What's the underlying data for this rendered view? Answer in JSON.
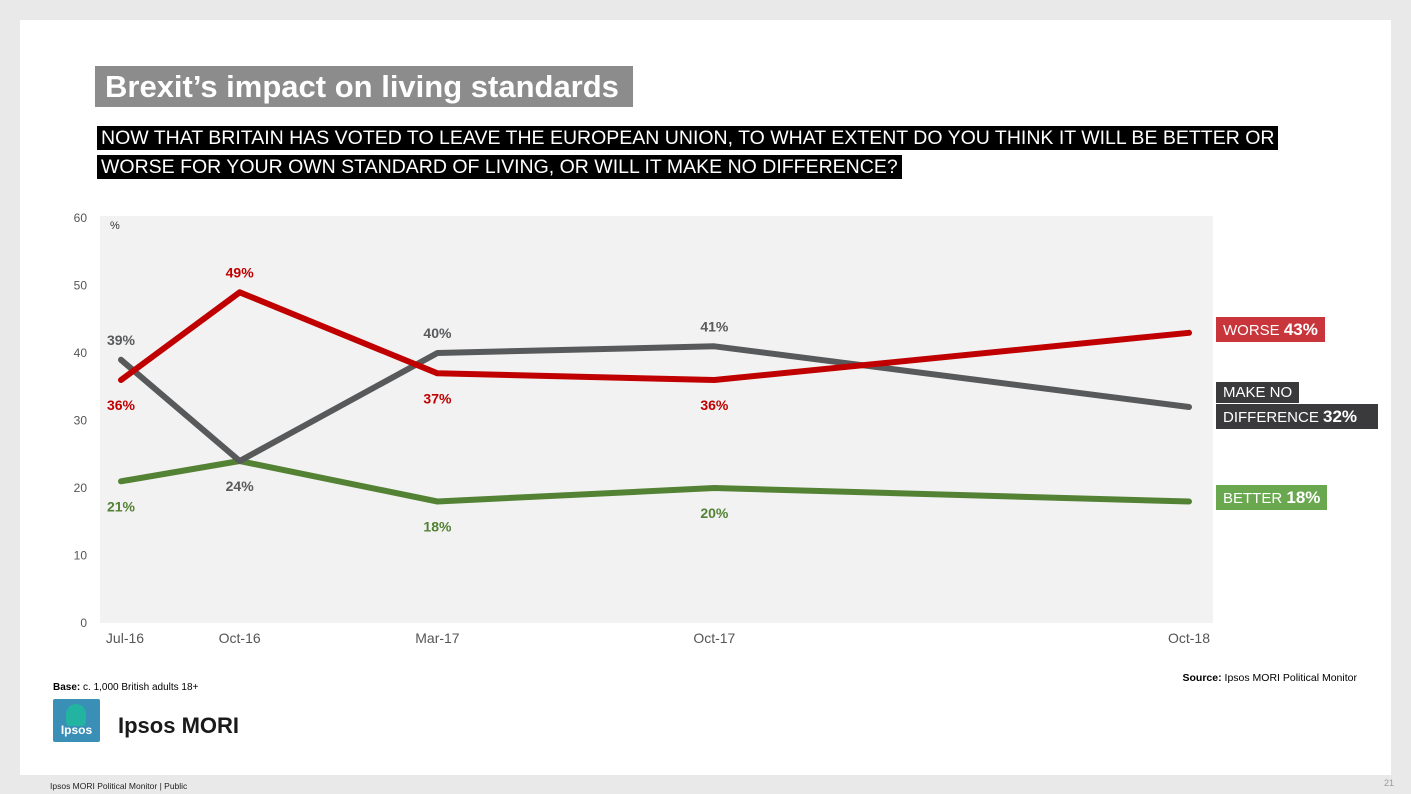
{
  "title": "Brexit’s impact on living standards",
  "question": "NOW THAT BRITAIN HAS VOTED TO LEAVE THE EUROPEAN UNION, TO WHAT EXTENT DO YOU THINK IT WILL BE BETTER OR WORSE FOR YOUR OWN STANDARD OF LIVING, OR WILL IT MAKE NO DIFFERENCE?",
  "legend": {
    "worse_label": "WORSE",
    "worse_value": "43%",
    "nodiff_label_1": "MAKE NO",
    "nodiff_label_2": "DIFFERENCE",
    "nodiff_value": "32%",
    "better_label": "BETTER",
    "better_value": "18%"
  },
  "base_label": "Base:",
  "base_text": "c. 1,000 British adults 18+",
  "source_label": "Source:",
  "source_text": "Ipsos MORI Political Monitor",
  "logo_text": "Ipsos",
  "brand": "Ipsos MORI",
  "footer": "Ipsos MORI Political Monitor | Public",
  "page_number": "21",
  "colors": {
    "worse": "#c00000",
    "no_difference": "#58595b",
    "better": "#548235",
    "worse_label_bg": "#c8353a",
    "nodiff_label_bg": "#3a3a3c",
    "better_label_bg": "#6aa84f",
    "plot_bg": "#f2f2f2"
  },
  "chart_data": {
    "type": "line",
    "unit_label": "%",
    "x": [
      "Jul-16",
      "Oct-16",
      "Mar-17",
      "Oct-17",
      "Oct-18"
    ],
    "x_months": [
      0,
      3,
      8,
      15,
      27
    ],
    "ylim": [
      0,
      60
    ],
    "yticks": [
      0,
      10,
      20,
      30,
      40,
      50,
      60
    ],
    "series": [
      {
        "name": "WORSE",
        "key": "worse",
        "values": [
          36,
          49,
          37,
          36,
          43
        ],
        "labels": [
          "36%",
          "49%",
          "37%",
          "36%",
          ""
        ],
        "label_pos": [
          "below",
          "above",
          "below",
          "below",
          "none"
        ]
      },
      {
        "name": "MAKE NO DIFFERENCE",
        "key": "no_difference",
        "values": [
          39,
          24,
          40,
          41,
          32
        ],
        "labels": [
          "39%",
          "24%",
          "40%",
          "41%",
          ""
        ],
        "label_pos": [
          "above",
          "below",
          "above",
          "above",
          "none"
        ]
      },
      {
        "name": "BETTER",
        "key": "better",
        "values": [
          21,
          24,
          18,
          20,
          18
        ],
        "labels": [
          "21%",
          "",
          "18%",
          "20%",
          ""
        ],
        "label_pos": [
          "below",
          "none",
          "below",
          "below",
          "none"
        ]
      }
    ]
  }
}
